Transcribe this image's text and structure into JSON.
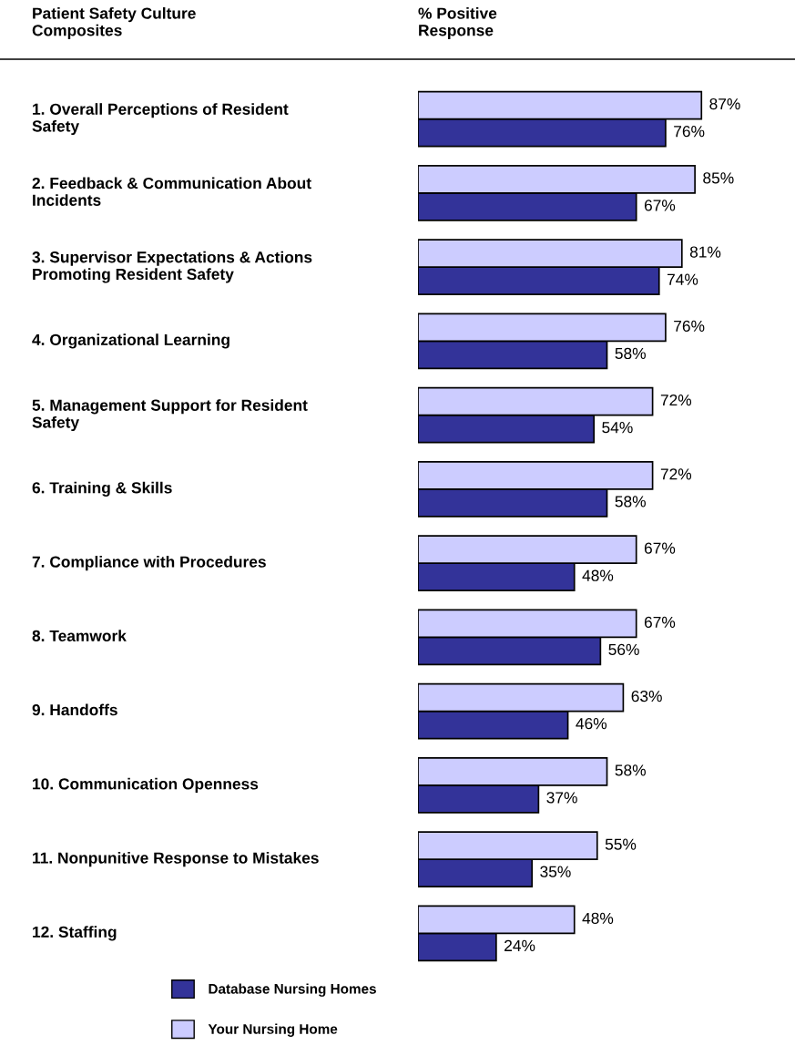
{
  "chart_data": {
    "type": "bar",
    "orientation": "horizontal",
    "title": "Patient Safety Culture Composites",
    "xlabel": "% Positive Response",
    "categories": [
      "1. Overall Perceptions of Resident Safety",
      "2. Feedback & Communication About Incidents",
      "3. Supervisor Expectations & Actions Promoting Resident Safety",
      "4. Organizational Learning",
      "5. Management Support for Resident Safety",
      "6. Training & Skills",
      "7. Compliance with Procedures",
      "8. Teamwork",
      "9. Handoffs",
      "10. Communication Openness",
      "11. Nonpunitive Response to Mistakes",
      "12. Staffing"
    ],
    "series": [
      {
        "name": "Database Nursing Homes",
        "color": "#333399",
        "values": [
          76,
          67,
          74,
          58,
          54,
          58,
          48,
          56,
          46,
          37,
          35,
          24
        ],
        "value_labels": [
          "76%",
          "67%",
          "74%",
          "58%",
          "54%",
          "58%",
          "48%",
          "56%",
          "46%",
          "37%",
          "35%",
          "24%"
        ]
      },
      {
        "name": "Your Nursing Home",
        "color": "#ccccff",
        "values": [
          87,
          85,
          81,
          76,
          72,
          72,
          67,
          67,
          63,
          58,
          55,
          48
        ],
        "value_labels": [
          "87%",
          "85%",
          "81%",
          "76%",
          "72%",
          "72%",
          "67%",
          "67%",
          "63%",
          "58%",
          "55%",
          "48%"
        ]
      }
    ],
    "legend": "bottom"
  }
}
